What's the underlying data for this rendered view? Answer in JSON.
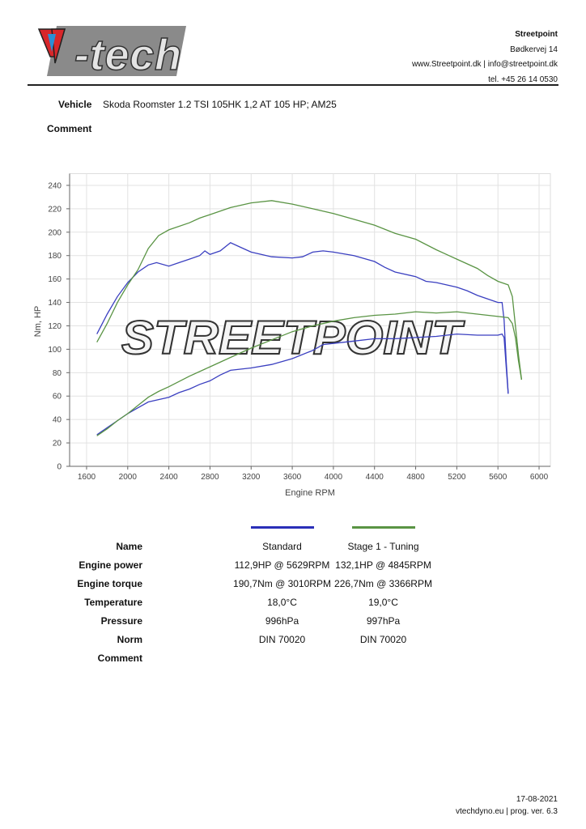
{
  "header": {
    "logo_text": "V-tech",
    "company_name": "Streetpoint",
    "address": "Bødkervej 14",
    "web_email": "www.Streetpoint.dk | info@streetpoint.dk",
    "phone": "tel. +45 26 14 0530"
  },
  "vehicle": {
    "label": "Vehicle",
    "value": "Skoda Roomster 1.2 TSI 105HK 1,2 AT 105 HP; AM25"
  },
  "comment_label": "Comment",
  "watermark_text": "STREETPOINT",
  "chart_data": {
    "type": "line",
    "xlabel": "Engine RPM",
    "ylabel": "Nm, HP",
    "xlim": [
      1435,
      6110
    ],
    "ylim": [
      0,
      250
    ],
    "xticks": [
      1600,
      2000,
      2400,
      2800,
      3200,
      3600,
      4000,
      4400,
      4800,
      5200,
      5600,
      6000
    ],
    "yticks": [
      0,
      20,
      40,
      60,
      80,
      100,
      120,
      140,
      160,
      180,
      200,
      220,
      240
    ],
    "grid": true,
    "series": [
      {
        "name": "Standard",
        "quantity": "torque",
        "color": "#3a3fc0",
        "x": [
          1700,
          1800,
          1900,
          2000,
          2100,
          2200,
          2280,
          2400,
          2500,
          2600,
          2700,
          2750,
          2800,
          2900,
          3000,
          3100,
          3200,
          3400,
          3600,
          3700,
          3800,
          3900,
          4000,
          4200,
          4400,
          4500,
          4600,
          4800,
          4900,
          5000,
          5100,
          5200,
          5300,
          5400,
          5500,
          5600,
          5640,
          5660,
          5680,
          5700
        ],
        "y": [
          113,
          130,
          145,
          157,
          166,
          172,
          174,
          171,
          174,
          177,
          180,
          184,
          181,
          184,
          191,
          187,
          183,
          179,
          178,
          179,
          183,
          184,
          183,
          180,
          175,
          170,
          166,
          162,
          158,
          157,
          155,
          153,
          150,
          146,
          143,
          140,
          140,
          125,
          90,
          62
        ]
      },
      {
        "name": "Stage 1 - Tuning",
        "quantity": "torque",
        "color": "#5a9444",
        "x": [
          1700,
          1800,
          1900,
          2000,
          2100,
          2200,
          2300,
          2400,
          2600,
          2700,
          2800,
          3000,
          3200,
          3400,
          3600,
          3800,
          4000,
          4200,
          4400,
          4600,
          4800,
          5000,
          5100,
          5200,
          5400,
          5500,
          5600,
          5700,
          5740,
          5770,
          5800,
          5830
        ],
        "y": [
          106,
          122,
          140,
          155,
          168,
          186,
          197,
          202,
          208,
          212,
          215,
          221,
          225,
          227,
          224,
          220,
          216,
          211,
          206,
          199,
          194,
          185,
          181,
          177,
          169,
          163,
          158,
          155,
          145,
          120,
          95,
          74
        ]
      },
      {
        "name": "Standard",
        "quantity": "power",
        "color": "#3a3fc0",
        "x": [
          1700,
          1800,
          1900,
          2000,
          2100,
          2200,
          2300,
          2400,
          2500,
          2600,
          2700,
          2800,
          2900,
          3000,
          3200,
          3400,
          3600,
          3800,
          3900,
          4000,
          4200,
          4400,
          4600,
          4800,
          5000,
          5200,
          5400,
          5600,
          5640,
          5660,
          5680,
          5700
        ],
        "y": [
          27,
          33,
          39,
          45,
          50,
          55,
          57,
          59,
          63,
          66,
          70,
          73,
          78,
          82,
          84,
          87,
          92,
          99,
          104,
          105,
          107,
          109,
          109,
          110,
          111,
          113,
          112,
          112,
          113,
          110,
          85,
          62
        ]
      },
      {
        "name": "Stage 1 - Tuning",
        "quantity": "power",
        "color": "#5a9444",
        "x": [
          1700,
          1800,
          1900,
          2000,
          2100,
          2200,
          2300,
          2400,
          2600,
          2800,
          3000,
          3200,
          3400,
          3600,
          3800,
          4000,
          4200,
          4400,
          4600,
          4800,
          5000,
          5200,
          5400,
          5600,
          5700,
          5740,
          5770,
          5800,
          5830
        ],
        "y": [
          26,
          32,
          39,
          45,
          52,
          59,
          64,
          68,
          77,
          85,
          93,
          101,
          108,
          115,
          120,
          124,
          127,
          129,
          130,
          132,
          131,
          132,
          130,
          128,
          127,
          122,
          110,
          90,
          74
        ]
      }
    ]
  },
  "results": {
    "legend_colors": [
      "#2a2fb8",
      "#5a9444"
    ],
    "rows": [
      {
        "label": "Name",
        "standard": "Standard",
        "stage1": "Stage 1 - Tuning"
      },
      {
        "label": "Engine power",
        "standard": "112,9HP @ 5629RPM",
        "stage1": "132,1HP @ 4845RPM"
      },
      {
        "label": "Engine torque",
        "standard": "190,7Nm @ 3010RPM",
        "stage1": "226,7Nm @ 3366RPM"
      },
      {
        "label": "Temperature",
        "standard": "18,0°C",
        "stage1": "19,0°C"
      },
      {
        "label": "Pressure",
        "standard": "996hPa",
        "stage1": "997hPa"
      },
      {
        "label": "Norm",
        "standard": "DIN 70020",
        "stage1": "DIN 70020"
      },
      {
        "label": "Comment",
        "standard": "",
        "stage1": ""
      }
    ]
  },
  "footer": {
    "date": "17-08-2021",
    "program": "vtechdyno.eu | prog. ver. 6.3"
  }
}
